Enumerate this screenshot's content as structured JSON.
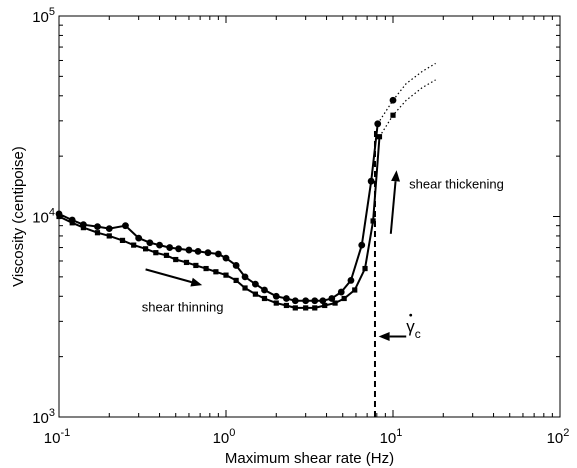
{
  "chart_data": {
    "type": "line",
    "title": "",
    "xlabel": "Maximum shear rate (Hz)",
    "ylabel": "Viscosity (centipoise)",
    "xscale": "log",
    "yscale": "log",
    "xlim": [
      0.1,
      100
    ],
    "ylim": [
      1000,
      100000
    ],
    "x_tick_labels": [
      {
        "base": "10",
        "exp": "-1"
      },
      {
        "base": "10",
        "exp": "0"
      },
      {
        "base": "10",
        "exp": "1"
      },
      {
        "base": "10",
        "exp": "2"
      }
    ],
    "y_tick_labels": [
      {
        "base": "10",
        "exp": "3"
      },
      {
        "base": "10",
        "exp": "4"
      },
      {
        "base": "10",
        "exp": "5"
      }
    ],
    "grid": false,
    "series": [
      {
        "marker": "circle",
        "line": "solid",
        "color": "#000000",
        "x": [
          0.1,
          0.12,
          0.14,
          0.17,
          0.2,
          0.25,
          0.3,
          0.35,
          0.4,
          0.46,
          0.52,
          0.6,
          0.68,
          0.78,
          0.9,
          1.0,
          1.15,
          1.3,
          1.5,
          1.7,
          2.0,
          2.3,
          2.6,
          3.0,
          3.4,
          3.8,
          4.3,
          4.9,
          5.6,
          6.5,
          7.4,
          8.1
        ],
        "y": [
          10300,
          9600,
          9100,
          8900,
          8700,
          9000,
          7800,
          7400,
          7200,
          7000,
          6900,
          6800,
          6700,
          6600,
          6500,
          6200,
          5700,
          5000,
          4600,
          4300,
          4000,
          3900,
          3800,
          3800,
          3800,
          3800,
          3900,
          4200,
          4800,
          7200,
          15000,
          29000
        ]
      },
      {
        "marker": "square",
        "line": "solid",
        "color": "#000000",
        "x": [
          0.1,
          0.12,
          0.14,
          0.17,
          0.2,
          0.24,
          0.28,
          0.33,
          0.38,
          0.44,
          0.5,
          0.58,
          0.66,
          0.76,
          0.87,
          1.0,
          1.15,
          1.3,
          1.5,
          1.7,
          2.0,
          2.3,
          2.6,
          3.0,
          3.4,
          3.9,
          4.5,
          5.1,
          5.9,
          6.8,
          7.6,
          8.3
        ],
        "y": [
          10000,
          9300,
          8800,
          8300,
          8000,
          7600,
          7200,
          6900,
          6600,
          6400,
          6100,
          5900,
          5700,
          5500,
          5300,
          5100,
          4800,
          4400,
          4100,
          3900,
          3700,
          3600,
          3500,
          3500,
          3500,
          3600,
          3700,
          3900,
          4300,
          5500,
          9500,
          25000
        ]
      },
      {
        "marker": "circle",
        "line": "dotted",
        "color": "#000000",
        "x": [
          8.1,
          10.0,
          12.0,
          15.0,
          18.0
        ],
        "y": [
          29000,
          38000,
          46000,
          53000,
          58000
        ]
      },
      {
        "marker": "square",
        "line": "dotted",
        "color": "#000000",
        "x": [
          8.3,
          10.0,
          12.0,
          15.0,
          18.0
        ],
        "y": [
          25000,
          32000,
          38000,
          44000,
          48000
        ]
      }
    ],
    "critical_rate_x": 7.8,
    "annotations": [
      {
        "text": "shear thinning",
        "x": 0.55,
        "y": 3350
      },
      {
        "text": "shear thickening",
        "x": 24,
        "y": 13800
      },
      {
        "text": "γ",
        "sub": "c",
        "overdot": true,
        "x": 12.0,
        "y": 2650
      }
    ],
    "arrows": [
      {
        "from_x": 0.33,
        "from_y": 5450,
        "to_x": 0.72,
        "to_y": 4550
      },
      {
        "from_x": 9.7,
        "from_y": 8200,
        "to_x": 10.5,
        "to_y": 17000
      },
      {
        "from_x": 12.0,
        "from_y": 2520,
        "to_x": 8.2,
        "to_y": 2520
      }
    ]
  }
}
